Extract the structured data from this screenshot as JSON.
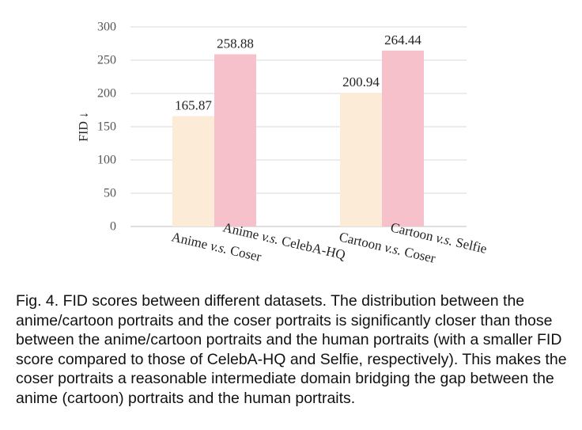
{
  "chart_data": {
    "type": "bar",
    "ylabel": "FID ↓",
    "ylim": [
      0,
      300
    ],
    "yticks": [
      0,
      50,
      100,
      150,
      200,
      250,
      300
    ],
    "grid": true,
    "legend": "none",
    "groups": [
      {
        "bars": [
          {
            "label": "Anime v.s. Coser",
            "label_parts": [
              "Anime ",
              "v.s.",
              " Coser"
            ],
            "value": 165.87,
            "value_label": "165.87",
            "color": "#fbebd7"
          },
          {
            "label": "Anime v.s. CelebA-HQ",
            "label_parts": [
              "Anime ",
              "v.s.",
              " CelebA-HQ"
            ],
            "value": 258.88,
            "value_label": "258.88",
            "color": "#f7c1cb"
          }
        ]
      },
      {
        "bars": [
          {
            "label": "Cartoon v.s. Coser",
            "label_parts": [
              "Cartoon ",
              "v.s.",
              " Coser"
            ],
            "value": 200.94,
            "value_label": "200.94",
            "color": "#fbebd7"
          },
          {
            "label": "Cartoon v.s. Selfie",
            "label_parts": [
              "Cartoon ",
              "v.s.",
              " Selfie"
            ],
            "value": 264.44,
            "value_label": "264.44",
            "color": "#f7c1cb"
          }
        ]
      }
    ]
  },
  "caption": "Fig. 4. FID scores between different datasets. The distribution between the anime/cartoon portraits and the coser portraits is significantly closer than those between the anime/cartoon portraits and the human portraits (with a smaller FID score compared to those of CelebA-HQ and Selfie, respectively). This makes the coser portraits a reasonable intermediate domain bridging the gap between the anime (cartoon) portraits and the human portraits."
}
